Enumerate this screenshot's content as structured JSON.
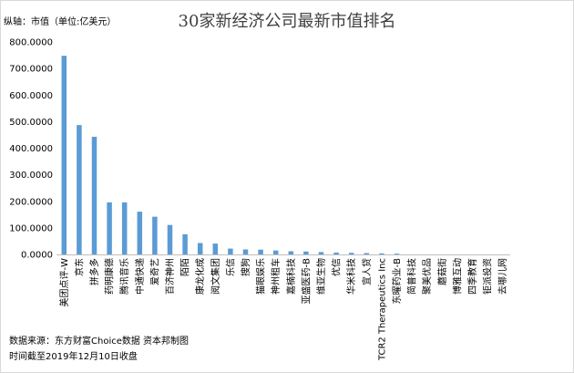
{
  "chart_data": {
    "type": "bar",
    "title": "30家新经济公司最新市值排名",
    "ylabel": "纵轴：市值（单位:亿美元）",
    "ylim": [
      0,
      800
    ],
    "yticks": [
      "0.0000",
      "100.0000",
      "200.0000",
      "300.0000",
      "400.0000",
      "500.0000",
      "600.0000",
      "700.0000",
      "800.0000"
    ],
    "grid": false,
    "legend": "none",
    "bar_color": "#5B9BD5",
    "categories": [
      "美团点评-W",
      "京东",
      "拼多多",
      "药明康德",
      "腾讯音乐",
      "中通快递",
      "爱奇艺",
      "百济神州",
      "陌陌",
      "康龙化成",
      "阅文集团",
      "乐信",
      "搜狗",
      "猫眼娱乐",
      "神州租车",
      "嘉楠科技",
      "亚盛医药-B",
      "维亚生物",
      "优信",
      "华米科技",
      "宜人贷",
      "TCR2 Therapeutics Inc",
      "东曜药业-B",
      "简普科技",
      "聚美优品",
      "蘑菇街",
      "博雅互动",
      "四季教育",
      "钜派投资",
      "去哪儿网"
    ],
    "values": [
      748,
      487,
      443,
      196,
      196,
      161,
      142,
      111,
      76,
      43,
      41,
      22,
      19,
      18,
      15,
      12,
      11,
      9,
      7,
      6,
      5,
      4,
      3,
      0,
      0,
      0,
      0,
      0,
      0,
      0
    ]
  },
  "footer": {
    "source": "数据来源：东方财富Choice数据 资本邦制图",
    "time": "时间截至2019年12月10日收盘"
  }
}
